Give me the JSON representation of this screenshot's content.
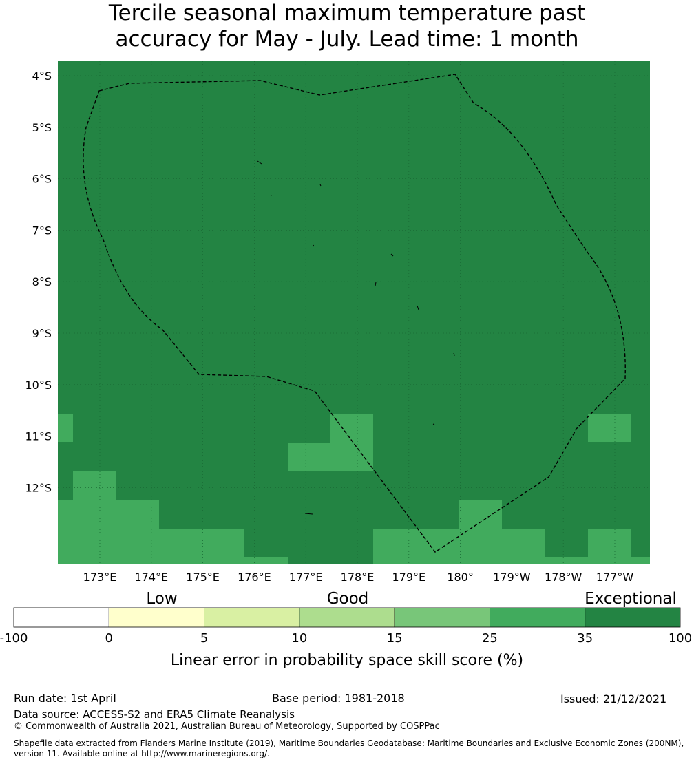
{
  "title_lines": [
    "Tercile seasonal maximum temperature past",
    "accuracy for May - July. Lead time: 1 month"
  ],
  "map": {
    "lat_labels": [
      "4°S",
      "5°S",
      "6°S",
      "7°S",
      "8°S",
      "9°S",
      "10°S",
      "11°S",
      "12°S"
    ],
    "lon_labels": [
      "173°E",
      "174°E",
      "175°E",
      "176°E",
      "177°E",
      "178°E",
      "179°E",
      "180°",
      "179°W",
      "178°W",
      "177°W"
    ],
    "colors": {
      "exceptional": "#238443",
      "good_plus": "#41ab5d",
      "gridline": "#1a6a35",
      "boundary": "#000000"
    }
  },
  "legend": {
    "categories": [
      "Low",
      "Good",
      "Exceptional"
    ],
    "tick_labels": [
      "-100",
      "0",
      "5",
      "10",
      "15",
      "25",
      "35",
      "100"
    ],
    "colors": [
      "#ffffff",
      "#ffffcc",
      "#d9f0a3",
      "#addd8e",
      "#78c679",
      "#41ab5d",
      "#238443"
    ],
    "label": "Linear error in probability space skill score (%)"
  },
  "footer": {
    "run_date": "Run date: 1st April",
    "base_period": "Base period: 1981-2018",
    "issued": "Issued: 21/12/2021",
    "data_source": "Data source: ACCESS-S2 and ERA5 Climate Reanalysis",
    "copyright": "© Commonwealth of Australia 2021, Australian Bureau of Meteorology, Supported by COSPPac",
    "shapefile_line1": "Shapefile data extracted from Flanders Marine Institute (2019), Maritime Boundaries Geodatabase: Maritime Boundaries and Exclusive Economic Zones (200NM),",
    "shapefile_line2": "version 11. Available online at http://www.marineregions.org/."
  }
}
